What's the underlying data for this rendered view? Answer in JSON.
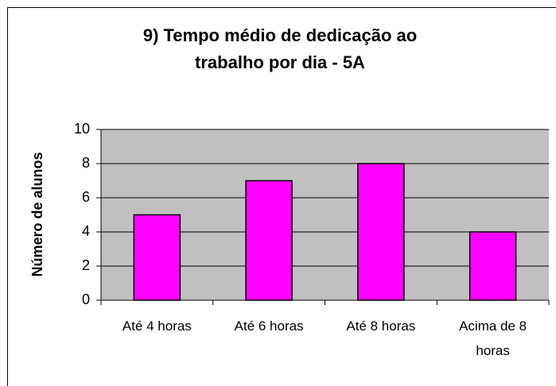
{
  "chart_data": {
    "type": "bar",
    "title": "9) Tempo médio de dedicação ao trabalho por dia - 5A",
    "y_label": "Número de alunos",
    "categories": [
      "Até 4 horas",
      "Até 6 horas",
      "Até 8 horas",
      "Acima de 8 horas"
    ],
    "values": [
      5,
      7,
      8,
      4
    ],
    "color": "#ff00ff",
    "ylim": [
      0,
      10
    ],
    "yticks": [
      0,
      2,
      4,
      6,
      8,
      10
    ],
    "grid": true
  }
}
